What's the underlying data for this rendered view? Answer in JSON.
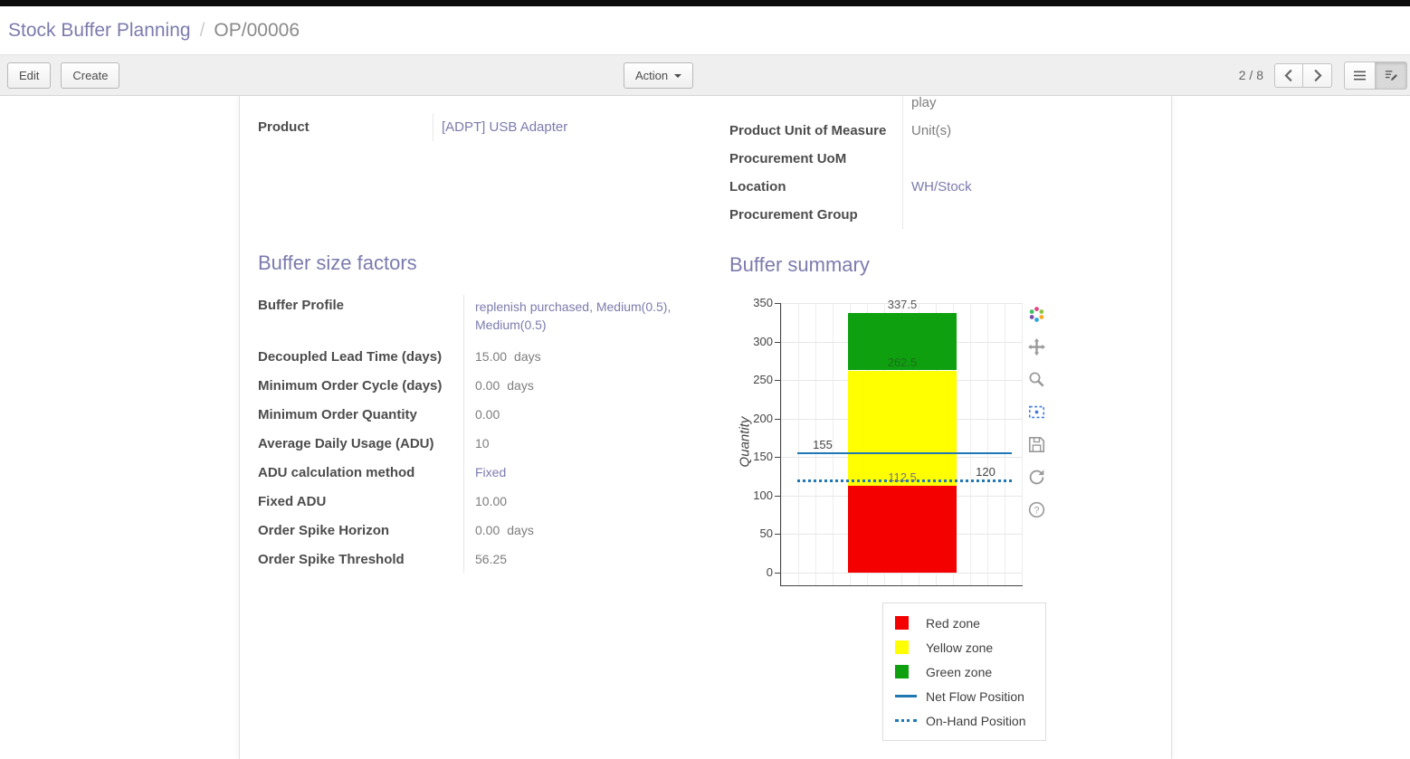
{
  "breadcrumb": {
    "parent": "Stock Buffer Planning",
    "separator": "/",
    "current": "OP/00006"
  },
  "control_bar": {
    "edit": "Edit",
    "create": "Create",
    "action": "Action",
    "pager": "2 / 8"
  },
  "form": {
    "left_fields": [
      {
        "label": "Product",
        "value": "[ADPT] USB Adapter",
        "link": true
      }
    ],
    "right_fields": [
      {
        "label": "",
        "value": "play"
      },
      {
        "label": "Product Unit of Measure",
        "value": "Unit(s)"
      },
      {
        "label": "Procurement UoM",
        "value": ""
      },
      {
        "label": "Location",
        "value": "WH/Stock",
        "link": true
      },
      {
        "label": "Procurement Group",
        "value": ""
      }
    ],
    "factors_title": "Buffer size factors",
    "summary_title": "Buffer summary",
    "factors": [
      {
        "label": "Buffer Profile",
        "value": "replenish purchased, Medium(0.5), Medium(0.5)",
        "link": true
      },
      {
        "label": "Decoupled Lead Time (days)",
        "value": "15.00",
        "unit": "days"
      },
      {
        "label": "Minimum Order Cycle (days)",
        "value": "0.00",
        "unit": "days"
      },
      {
        "label": "Minimum Order Quantity",
        "value": "0.00"
      },
      {
        "label": "Average Daily Usage (ADU)",
        "value": "10"
      },
      {
        "label": "ADU calculation method",
        "value": "Fixed",
        "link": true
      },
      {
        "label": "Fixed ADU",
        "value": "10.00"
      },
      {
        "label": "Order Spike Horizon",
        "value": "0.00",
        "unit": "days"
      },
      {
        "label": "Order Spike Threshold",
        "value": "56.25"
      }
    ]
  },
  "chart_data": {
    "type": "bar",
    "title": "",
    "ylabel": "Quantity",
    "ylim": [
      0,
      350
    ],
    "yticks": [
      0,
      50,
      100,
      150,
      200,
      250,
      300,
      350
    ],
    "grid": true,
    "zones": [
      {
        "name": "Red zone",
        "from": 0,
        "to": 112.5,
        "color": "#f40000"
      },
      {
        "name": "Yellow zone",
        "from": 112.5,
        "to": 262.5,
        "color": "#ffff00"
      },
      {
        "name": "Green zone",
        "from": 262.5,
        "to": 337.5,
        "color": "#0fa00f"
      }
    ],
    "lines": [
      {
        "name": "Net Flow Position",
        "value": 155,
        "style": "solid",
        "color": "#1f77b4"
      },
      {
        "name": "On-Hand Position",
        "value": 120,
        "style": "dotted",
        "color": "#1f77b4"
      }
    ],
    "annotations": [
      {
        "text": "337.5",
        "value": 337.5,
        "x": "bar-center",
        "color": "#555555"
      },
      {
        "text": "262.5",
        "value": 262.5,
        "x": "bar-center",
        "color": "#1d6f1d"
      },
      {
        "text": "155",
        "value": 155,
        "x": "line-left",
        "color": "#444444"
      },
      {
        "text": "112.5",
        "value": 112.5,
        "x": "bar-center",
        "color": "#777777"
      },
      {
        "text": "120",
        "value": 120,
        "x": "line-right",
        "color": "#444444"
      }
    ],
    "legend": [
      {
        "label": "Red zone",
        "kind": "square",
        "color": "#f40000"
      },
      {
        "label": "Yellow zone",
        "kind": "square",
        "color": "#ffff00"
      },
      {
        "label": "Green zone",
        "kind": "square",
        "color": "#0fa00f"
      },
      {
        "label": "Net Flow Position",
        "kind": "line",
        "color": "#1f77b4"
      },
      {
        "label": "On-Hand Position",
        "kind": "dotted",
        "color": "#1f77b4"
      }
    ],
    "legend_position": "bottom-right"
  },
  "colors": {
    "accent": "#7c7bad",
    "link": "#7c7bad",
    "topbar": "#0c0c0c"
  },
  "icons": {
    "action_caret": "caret-down",
    "pager_prev": "chevron-left",
    "pager_next": "chevron-right",
    "view_list": "list",
    "view_form": "form-edit",
    "modebar": [
      "plotly-logo",
      "pan",
      "zoom",
      "box-select",
      "save",
      "reset-axes",
      "help"
    ]
  }
}
